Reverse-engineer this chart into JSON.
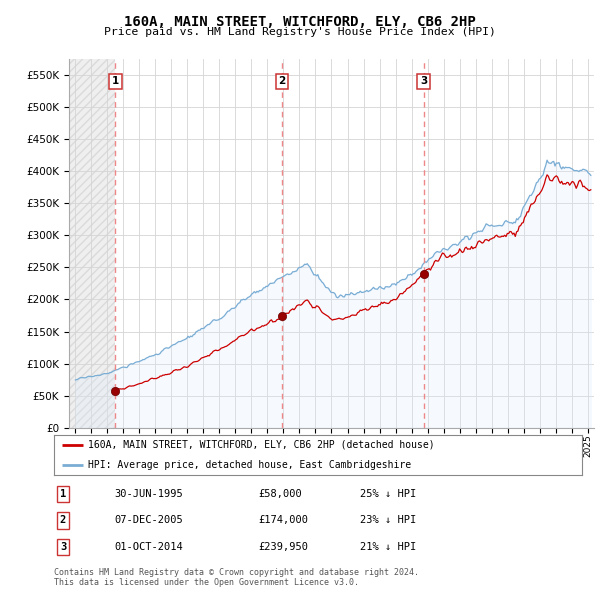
{
  "title": "160A, MAIN STREET, WITCHFORD, ELY, CB6 2HP",
  "subtitle": "Price paid vs. HM Land Registry's House Price Index (HPI)",
  "ylim": [
    0,
    575000
  ],
  "yticks": [
    0,
    50000,
    100000,
    150000,
    200000,
    250000,
    300000,
    350000,
    400000,
    450000,
    500000,
    550000
  ],
  "xlim_start": 1992.6,
  "xlim_end": 2025.4,
  "transactions": [
    {
      "num": 1,
      "date_x": 1995.5,
      "price": 58000,
      "label": "30-JUN-1995",
      "price_label": "£58,000",
      "hpi_pct": "25% ↓ HPI"
    },
    {
      "num": 2,
      "date_x": 2005.92,
      "price": 174000,
      "label": "07-DEC-2005",
      "price_label": "£174,000",
      "hpi_pct": "23% ↓ HPI"
    },
    {
      "num": 3,
      "date_x": 2014.75,
      "price": 239950,
      "label": "01-OCT-2014",
      "price_label": "£239,950",
      "hpi_pct": "21% ↓ HPI"
    }
  ],
  "red_line_color": "#cc0000",
  "blue_line_color": "#7aadd4",
  "blue_fill_color": "#ddeeff",
  "dashed_line_color": "#ee8888",
  "dot_color": "#990000",
  "hatch_color": "#d0d0d0",
  "legend_label_red": "160A, MAIN STREET, WITCHFORD, ELY, CB6 2HP (detached house)",
  "legend_label_blue": "HPI: Average price, detached house, East Cambridgeshire",
  "footer1": "Contains HM Land Registry data © Crown copyright and database right 2024.",
  "footer2": "This data is licensed under the Open Government Licence v3.0."
}
